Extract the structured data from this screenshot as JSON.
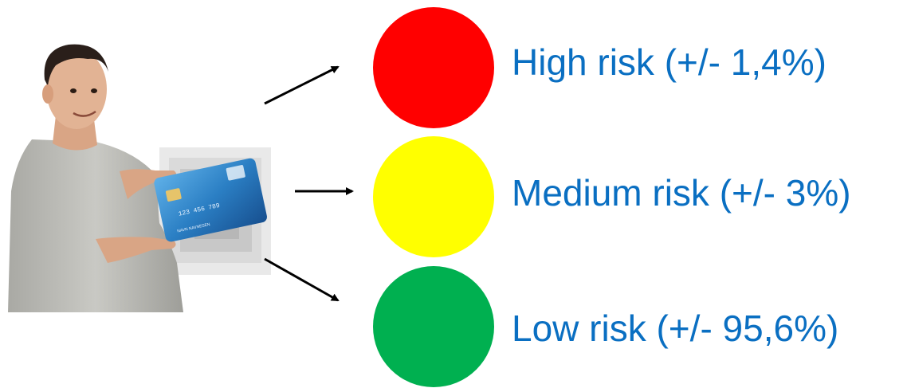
{
  "colors": {
    "label_text": "#0a6fc2",
    "high": "#ff0000",
    "medium": "#ffff00",
    "low": "#00b050",
    "arrow": "#000000",
    "card": "#2b7fc4"
  },
  "person": {
    "icon": "person-with-card-illustration",
    "card_number": "123 456 789",
    "card_holder": "NAVN NAVNESEN"
  },
  "risks": [
    {
      "level": "high",
      "label": "High risk (+/- 1,4%)"
    },
    {
      "level": "medium",
      "label": "Medium risk (+/- 3%)"
    },
    {
      "level": "low",
      "label": "Low risk (+/- 95,6%)"
    }
  ]
}
